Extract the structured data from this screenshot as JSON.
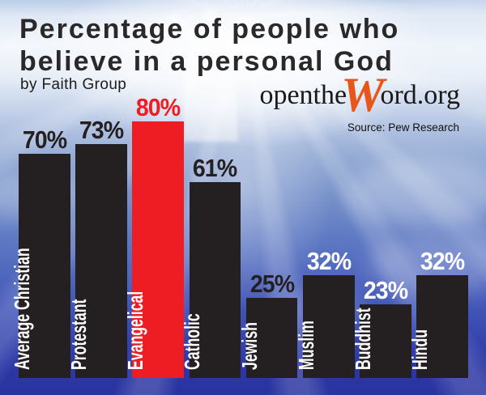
{
  "header": {
    "title_line1": "Percentage of people who",
    "title_line2": "believe in a personal God",
    "subtitle": "by Faith Group"
  },
  "branding": {
    "logo_prefix": "openthe",
    "logo_w": "W",
    "logo_suffix": "ord.org",
    "logo_accent_color": "#e7571c",
    "logo_text_color": "#191919",
    "source": "Source: Pew Research"
  },
  "colors": {
    "bar_default": "#241f21",
    "bar_highlight": "#ee1c23",
    "value_label_dark": "#241f21",
    "value_label_white": "#ffffff",
    "title_text": "#2b2829",
    "sky_top": "#c3d2ea",
    "sky_light": "#eef3fa",
    "sky_mid": "#6888c4",
    "sky_deep": "#2a34a0"
  },
  "decor": {
    "figure": "christ-silhouette-arms-raised",
    "rays": "light-rays-from-top-center"
  },
  "chart_data": {
    "type": "bar",
    "orientation": "vertical",
    "title": "Percentage of people who believe in a personal God",
    "subtitle": "by Faith Group",
    "source": "Source: Pew Research",
    "unit": "%",
    "ylim": [
      0,
      100
    ],
    "grid": false,
    "legend": false,
    "categories": [
      "Average Christian",
      "Protestant",
      "Evangelical",
      "Catholic",
      "Jewish",
      "Muslim",
      "Buddhist",
      "Hindu"
    ],
    "values": [
      70,
      73,
      80,
      61,
      25,
      32,
      23,
      32
    ],
    "value_labels": [
      "70%",
      "73%",
      "80%",
      "61%",
      "25%",
      "32%",
      "23%",
      "32%"
    ],
    "highlighted_category": "Evangelical",
    "bar_colors": [
      "#241f21",
      "#241f21",
      "#ee1c23",
      "#241f21",
      "#241f21",
      "#241f21",
      "#241f21",
      "#241f21"
    ],
    "value_label_colors": [
      "#241f21",
      "#241f21",
      "#ee1c23",
      "#241f21",
      "#241f21",
      "#ffffff",
      "#ffffff",
      "#ffffff"
    ],
    "category_label_color": "#ffffff"
  }
}
